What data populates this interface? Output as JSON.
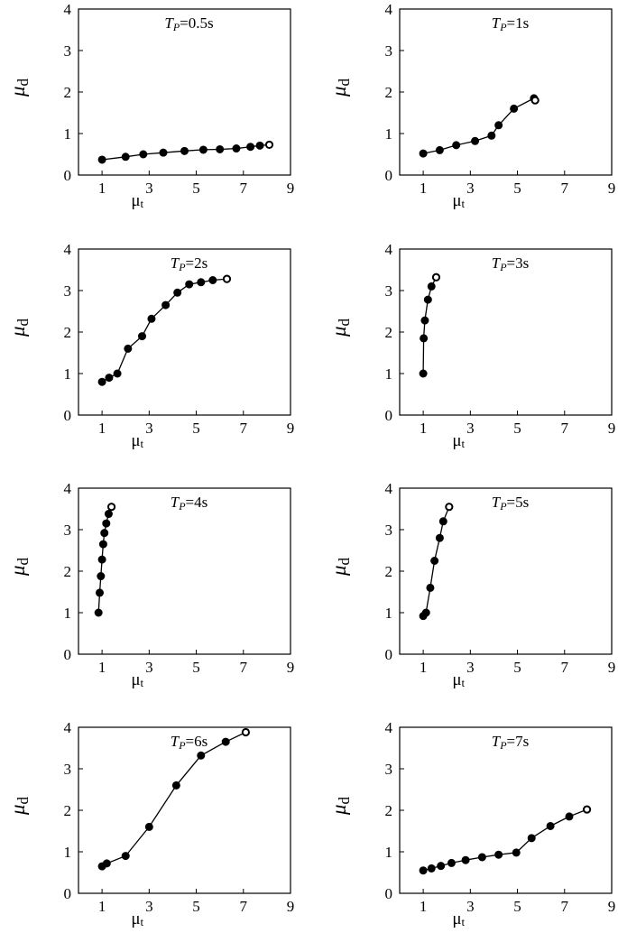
{
  "chart_data": [
    {
      "type": "line",
      "title": "Tp=0.5s",
      "title_parts": {
        "T": "T",
        "sub": "P",
        "rest": "=0.5s"
      },
      "xlabel": "μt",
      "ylabel": "μd",
      "xlim": [
        0,
        9
      ],
      "ylim": [
        0,
        4
      ],
      "xticks": [
        1,
        3,
        5,
        7,
        9
      ],
      "yticks": [
        0,
        1,
        2,
        3,
        4
      ],
      "x": [
        1.0,
        2.0,
        2.75,
        3.6,
        4.5,
        5.3,
        6.0,
        6.7,
        7.3,
        7.7,
        8.1
      ],
      "y": [
        0.37,
        0.44,
        0.5,
        0.54,
        0.58,
        0.61,
        0.62,
        0.64,
        0.68,
        0.71,
        0.73
      ],
      "last_point_open": true
    },
    {
      "type": "line",
      "title": "Tp=1s",
      "title_parts": {
        "T": "T",
        "sub": "P",
        "rest": "=1s"
      },
      "xlabel": "μt",
      "ylabel": "μd",
      "xlim": [
        0,
        9
      ],
      "ylim": [
        0,
        4
      ],
      "xticks": [
        1,
        3,
        5,
        7,
        9
      ],
      "yticks": [
        0,
        1,
        2,
        3,
        4
      ],
      "x": [
        1.0,
        1.7,
        2.4,
        3.2,
        3.9,
        4.2,
        4.85,
        5.7,
        5.75
      ],
      "y": [
        0.52,
        0.6,
        0.72,
        0.82,
        0.95,
        1.2,
        1.6,
        1.85,
        1.8
      ],
      "last_point_open": true
    },
    {
      "type": "line",
      "title": "Tp=2s",
      "title_parts": {
        "T": "T",
        "sub": "P",
        "rest": "=2s"
      },
      "xlabel": "μt",
      "ylabel": "μd",
      "xlim": [
        0,
        9
      ],
      "ylim": [
        0,
        4
      ],
      "xticks": [
        1,
        3,
        5,
        7,
        9
      ],
      "yticks": [
        0,
        1,
        2,
        3,
        4
      ],
      "x": [
        1.0,
        1.3,
        1.65,
        2.1,
        2.7,
        3.1,
        3.7,
        4.2,
        4.7,
        5.2,
        5.7,
        6.3
      ],
      "y": [
        0.8,
        0.9,
        1.0,
        1.6,
        1.9,
        2.32,
        2.65,
        2.95,
        3.15,
        3.2,
        3.25,
        3.28
      ],
      "last_point_open": true
    },
    {
      "type": "line",
      "title": "Tp=3s",
      "title_parts": {
        "T": "T",
        "sub": "P",
        "rest": "=3s"
      },
      "xlabel": "μt",
      "ylabel": "μd",
      "xlim": [
        0,
        9
      ],
      "ylim": [
        0,
        4
      ],
      "xticks": [
        1,
        3,
        5,
        7,
        9
      ],
      "yticks": [
        0,
        1,
        2,
        3,
        4
      ],
      "x": [
        1.0,
        1.02,
        1.07,
        1.2,
        1.35,
        1.55
      ],
      "y": [
        1.0,
        1.85,
        2.28,
        2.78,
        3.1,
        3.32
      ],
      "last_point_open": true
    },
    {
      "type": "line",
      "title": "Tp=4s",
      "title_parts": {
        "T": "T",
        "sub": "P",
        "rest": "=4s"
      },
      "xlabel": "μt",
      "ylabel": "μd",
      "xlim": [
        0,
        9
      ],
      "ylim": [
        0,
        4
      ],
      "xticks": [
        1,
        3,
        5,
        7,
        9
      ],
      "yticks": [
        0,
        1,
        2,
        3,
        4
      ],
      "x": [
        0.85,
        0.9,
        0.95,
        1.0,
        1.05,
        1.1,
        1.18,
        1.28,
        1.4
      ],
      "y": [
        1.0,
        1.48,
        1.88,
        2.28,
        2.65,
        2.92,
        3.15,
        3.38,
        3.55
      ],
      "last_point_open": true
    },
    {
      "type": "line",
      "title": "Tp=5s",
      "title_parts": {
        "T": "T",
        "sub": "P",
        "rest": "=5s"
      },
      "xlabel": "μt",
      "ylabel": "μd",
      "xlim": [
        0,
        9
      ],
      "ylim": [
        0,
        4
      ],
      "xticks": [
        1,
        3,
        5,
        7,
        9
      ],
      "yticks": [
        0,
        1,
        2,
        3,
        4
      ],
      "x": [
        1.0,
        1.12,
        1.3,
        1.48,
        1.7,
        1.85,
        2.1
      ],
      "y": [
        0.92,
        1.0,
        1.6,
        2.25,
        2.8,
        3.2,
        3.55
      ],
      "last_point_open": true
    },
    {
      "type": "line",
      "title": "Tp=6s",
      "title_parts": {
        "T": "T",
        "sub": "P",
        "rest": "=6s"
      },
      "xlabel": "μt",
      "ylabel": "μd",
      "xlim": [
        0,
        9
      ],
      "ylim": [
        0,
        4
      ],
      "xticks": [
        1,
        3,
        5,
        7,
        9
      ],
      "yticks": [
        0,
        1,
        2,
        3,
        4
      ],
      "x": [
        1.0,
        1.2,
        2.0,
        3.0,
        4.15,
        5.2,
        6.25,
        7.1
      ],
      "y": [
        0.65,
        0.72,
        0.9,
        1.6,
        2.6,
        3.32,
        3.65,
        3.88
      ],
      "last_point_open": true
    },
    {
      "type": "line",
      "title": "Tp=7s",
      "title_parts": {
        "T": "T",
        "sub": "P",
        "rest": "=7s"
      },
      "xlabel": "μt",
      "ylabel": "μd",
      "xlim": [
        0,
        9
      ],
      "ylim": [
        0,
        4
      ],
      "xticks": [
        1,
        3,
        5,
        7,
        9
      ],
      "yticks": [
        0,
        1,
        2,
        3,
        4
      ],
      "x": [
        1.0,
        1.35,
        1.75,
        2.2,
        2.8,
        3.5,
        4.2,
        4.95,
        5.6,
        6.4,
        7.2,
        7.95
      ],
      "y": [
        0.55,
        0.6,
        0.66,
        0.73,
        0.8,
        0.87,
        0.93,
        0.98,
        1.33,
        1.62,
        1.85,
        2.02
      ],
      "last_point_open": true
    }
  ]
}
